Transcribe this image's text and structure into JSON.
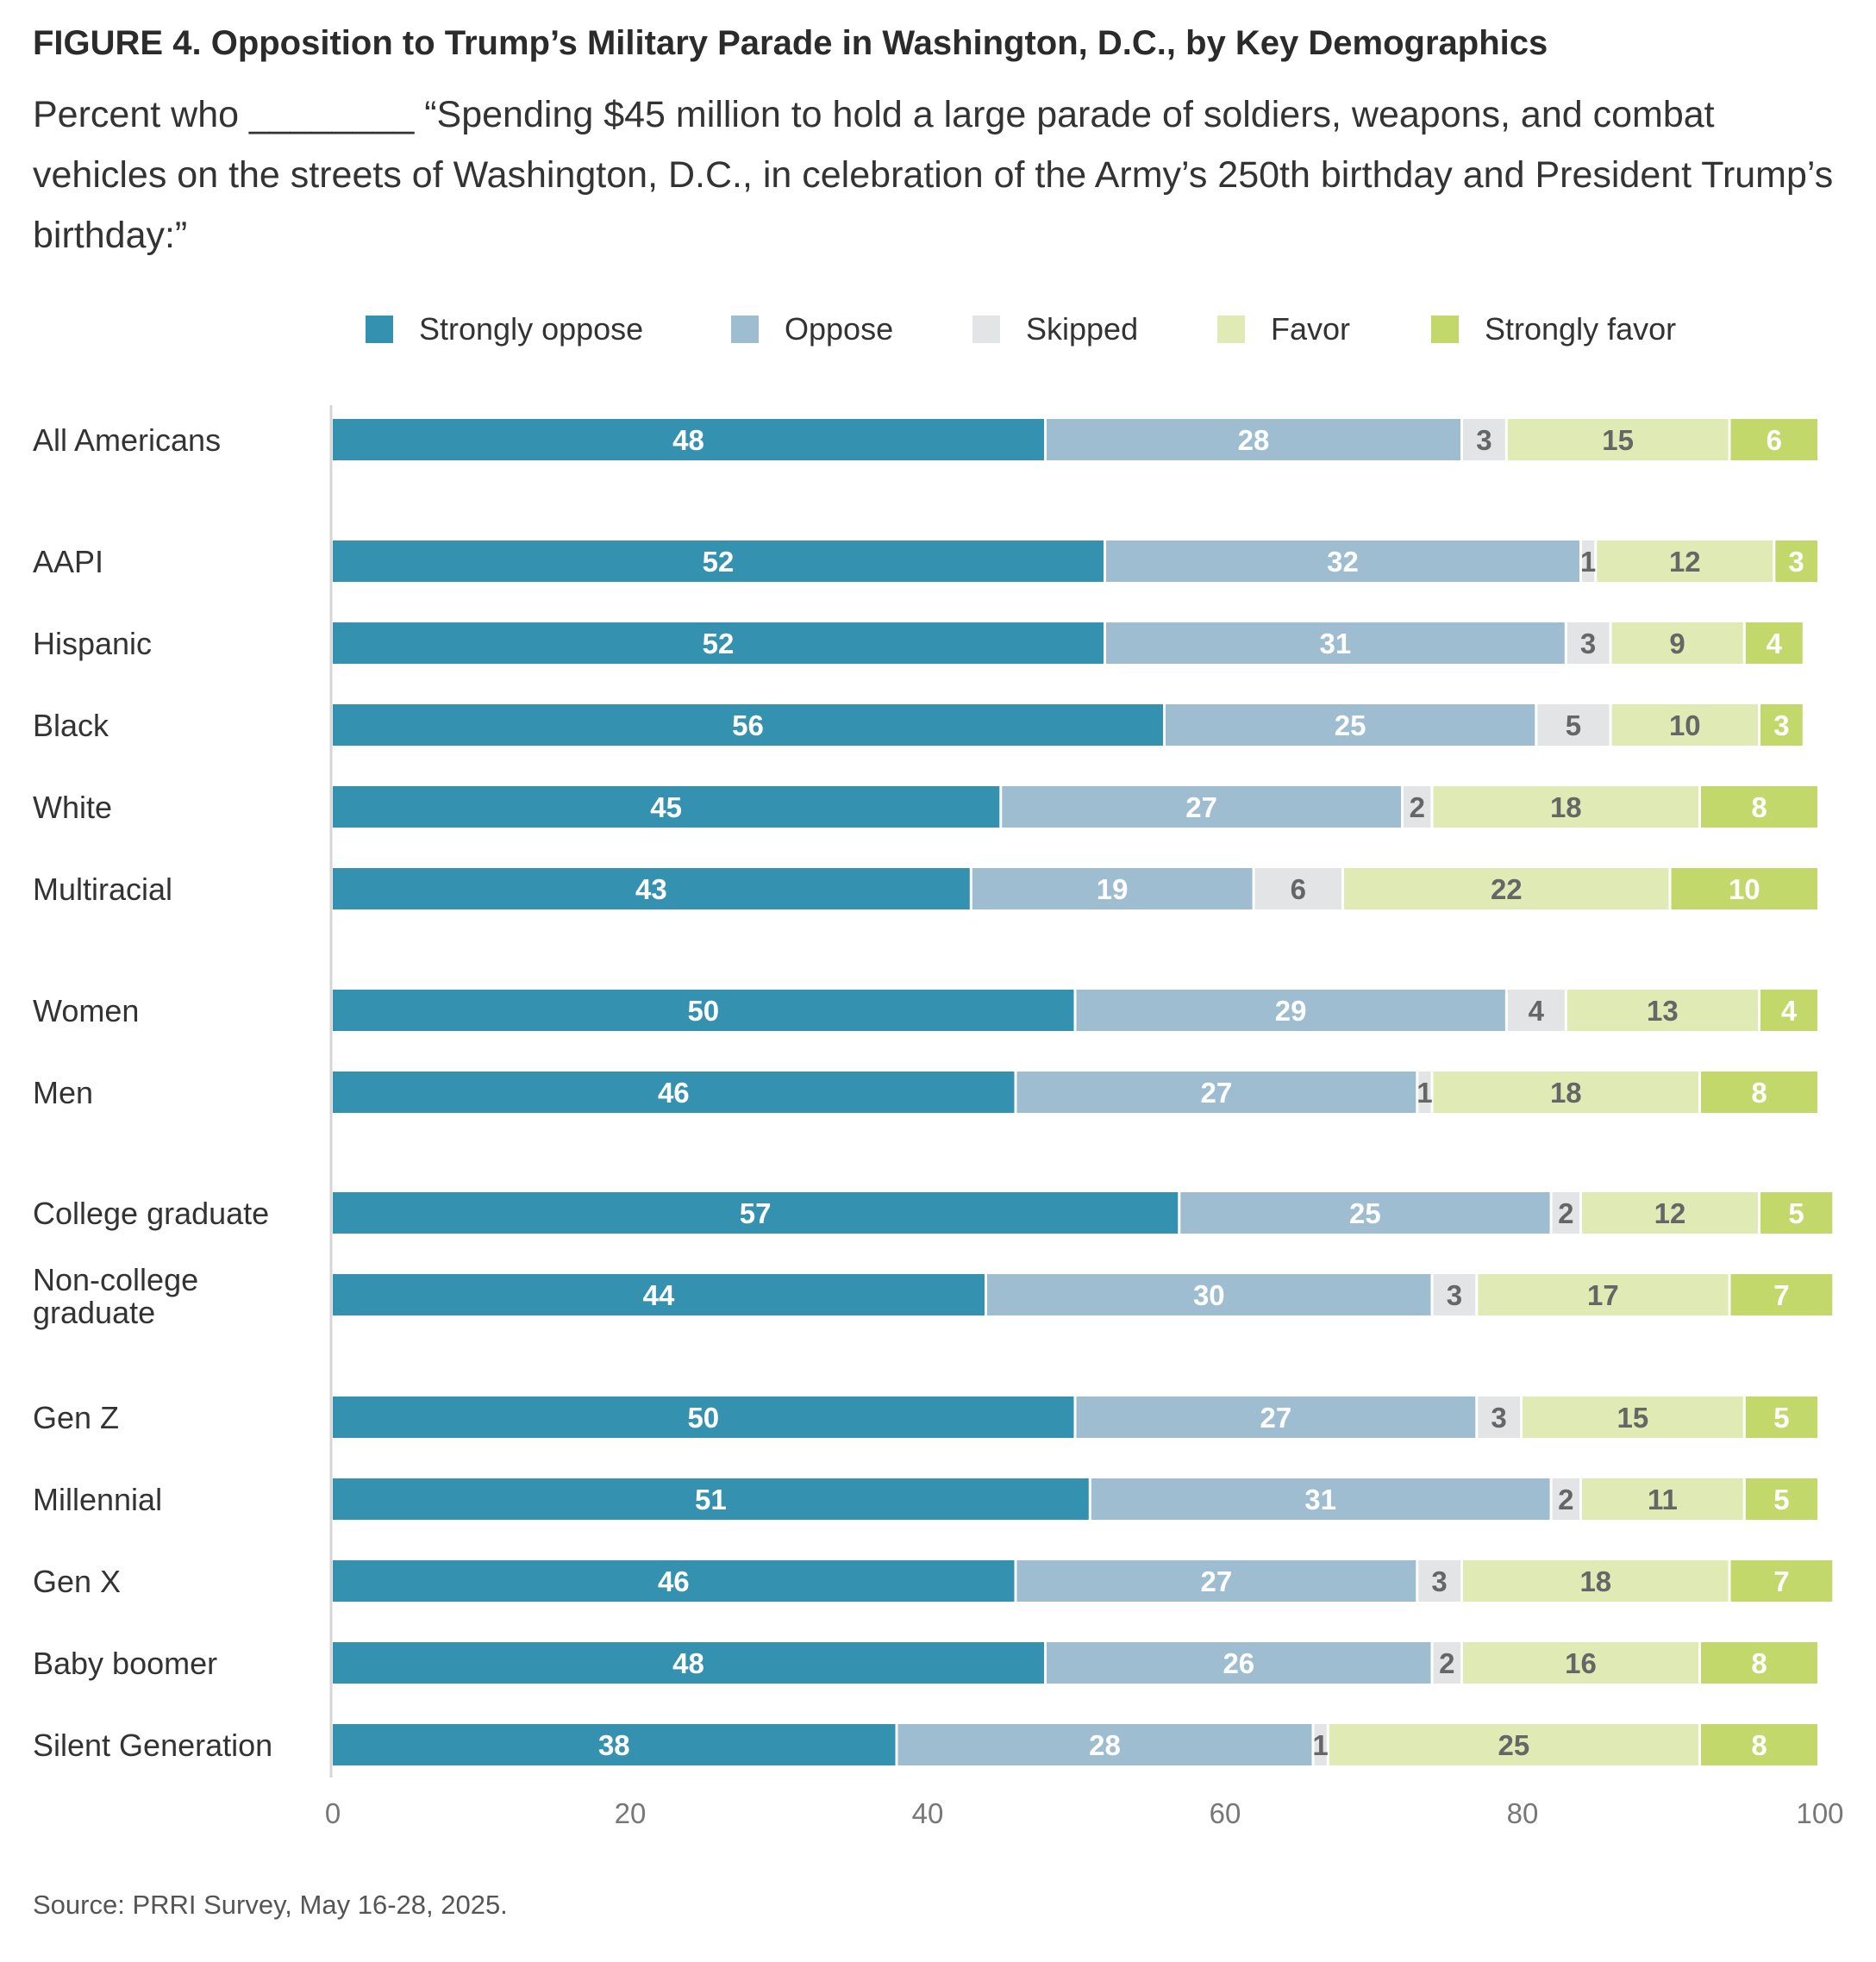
{
  "title": "FIGURE 4.  Opposition to Trump’s Military Parade in Washington, D.C., by Key Demographics",
  "subtitle": "Percent who ________ “Spending $45 million to hold a large parade of soldiers, weapons, and combat vehicles on the streets of Washington, D.C., in celebration of the Army’s 250th birthday and President Trump’s birthday:”",
  "source": "Source: PRRI Survey, May 16-28, 2025.",
  "chart_data": {
    "type": "bar",
    "orientation": "horizontal",
    "stacked": true,
    "legend_position": "top",
    "grid": false,
    "xlim": [
      0,
      100
    ],
    "x_ticks": [
      0,
      20,
      40,
      60,
      80,
      100
    ],
    "categories": [
      "All Americans",
      "AAPI",
      "Hispanic",
      "Black",
      "White",
      "Multiracial",
      "Women",
      "Men",
      "College graduate",
      "Non-college graduate",
      "Gen Z",
      "Millennial",
      "Gen X",
      "Baby boomer",
      "Silent Generation"
    ],
    "series": [
      {
        "name": "Strongly oppose",
        "color": "#3492b0",
        "label_color": "#ffffff",
        "values": [
          48,
          52,
          52,
          56,
          45,
          43,
          50,
          46,
          57,
          44,
          50,
          51,
          46,
          48,
          38
        ]
      },
      {
        "name": "Oppose",
        "color": "#9ebdd0",
        "label_color": "#ffffff",
        "values": [
          28,
          32,
          31,
          25,
          27,
          19,
          29,
          27,
          25,
          30,
          27,
          31,
          27,
          26,
          28
        ]
      },
      {
        "name": "Skipped",
        "color": "#e3e4e5",
        "label_color": "#666666",
        "values": [
          3,
          1,
          3,
          5,
          2,
          6,
          4,
          1,
          2,
          3,
          3,
          2,
          3,
          2,
          1
        ]
      },
      {
        "name": "Favor",
        "color": "#dfeab5",
        "label_color": "#666666",
        "values": [
          15,
          12,
          9,
          10,
          18,
          22,
          13,
          18,
          12,
          17,
          15,
          11,
          18,
          16,
          25
        ]
      },
      {
        "name": "Strongly favor",
        "color": "#c3d86a",
        "label_color": "#ffffff",
        "values": [
          6,
          3,
          4,
          3,
          8,
          10,
          4,
          8,
          5,
          7,
          5,
          5,
          7,
          8,
          8
        ]
      }
    ]
  }
}
